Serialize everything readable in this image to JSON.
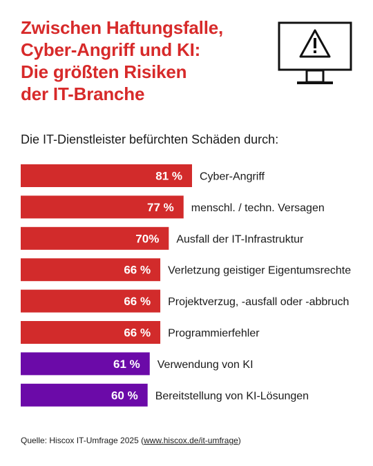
{
  "title": "Zwischen Haftungsfalle,\nCyber-Angriff und KI:\nDie größten Risiken\nder IT-Branche",
  "subtitle": "Die IT-Dienstleister befürchten Schäden durch:",
  "icon": "monitor-warning-icon",
  "colors": {
    "title": "#d72a2a",
    "red": "#d22b2b",
    "purple": "#6b0aa8"
  },
  "chart_data": {
    "type": "bar",
    "orientation": "horizontal",
    "unit": "%",
    "categories": [
      "Cyber-Angriff",
      "menschl. / techn. Versagen",
      "Ausfall der IT-Infrastruktur",
      "Verletzung geistiger Eigentumsrechte",
      "Projektverzug, -ausfall oder -abbruch",
      "Programmierfehler",
      "Verwendung von KI",
      "Bereitstellung von KI-Lösungen"
    ],
    "values": [
      81,
      77,
      70,
      66,
      66,
      66,
      61,
      60
    ],
    "value_labels": [
      "81 %",
      "77 %",
      "70%",
      "66 %",
      "66 %",
      "66 %",
      "61 %",
      "60 %"
    ],
    "bar_colors": [
      "#d22b2b",
      "#d22b2b",
      "#d22b2b",
      "#d22b2b",
      "#d22b2b",
      "#d22b2b",
      "#6b0aa8",
      "#6b0aa8"
    ]
  },
  "source": {
    "prefix": "Quelle: Hiscox IT-Umfrage 2025 (",
    "link": "www.hiscox.de/it-umfrage",
    "suffix": ")"
  }
}
